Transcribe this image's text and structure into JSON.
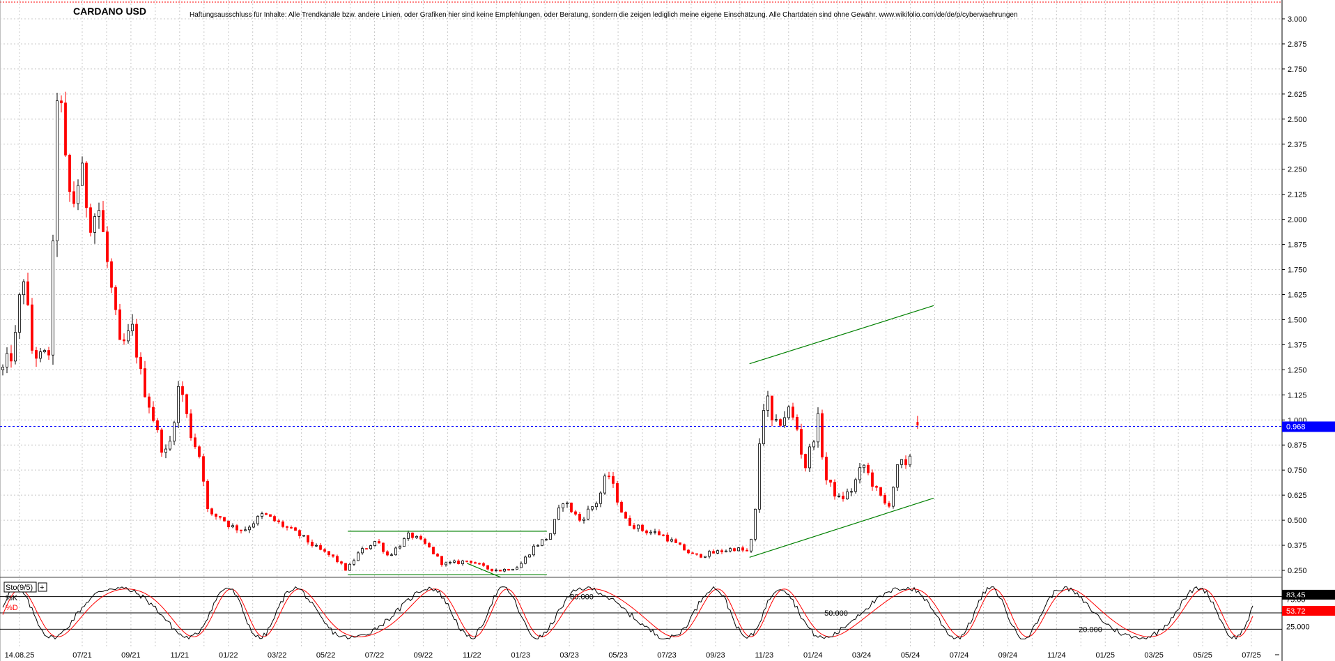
{
  "chart_data": {
    "type": "candlestick",
    "title": "CARDANO USD",
    "disclaimer": "Haftungsausschluss für Inhalte: Alle Trendkanäle bzw. andere Linien, oder Grafiken hier sind keine Empfehlungen, oder Beratung, sondern die zeigen lediglich meine eigene Einschätzung. Alle Chartdaten sind ohne Gewähr.  www.wikifolio.com/de/de/p/cyberwaehrungen",
    "x_tick_labels": [
      "14.08.25",
      "07/21",
      "09/21",
      "11/21",
      "01/22",
      "03/22",
      "05/22",
      "07/22",
      "09/22",
      "11/22",
      "01/23",
      "03/23",
      "05/23",
      "07/23",
      "09/23",
      "11/23",
      "01/24",
      "03/24",
      "05/24",
      "07/24",
      "09/24",
      "11/24",
      "01/25",
      "03/25",
      "05/25",
      "07/25"
    ],
    "y_ticks": [
      "0.250",
      "0.375",
      "0.500",
      "0.625",
      "0.750",
      "0.875",
      "1.000",
      "1.125",
      "1.250",
      "1.375",
      "1.500",
      "1.625",
      "1.750",
      "1.875",
      "2.000",
      "2.125",
      "2.250",
      "2.375",
      "2.500",
      "2.625",
      "2.750",
      "2.875",
      "3.000"
    ],
    "ylim": [
      0.2,
      3.04
    ],
    "last_price": "0.968",
    "last_price_value": 0.968,
    "price_path": [
      {
        "date": "2021-06-01",
        "close": 1.25
      },
      {
        "date": "2021-06-20",
        "close": 1.35
      },
      {
        "date": "2021-07-05",
        "close": 1.75
      },
      {
        "date": "2021-07-20",
        "close": 1.35
      },
      {
        "date": "2021-08-05",
        "close": 1.3
      },
      {
        "date": "2021-08-20",
        "close": 1.35
      },
      {
        "date": "2021-09-02",
        "close": 2.85
      },
      {
        "date": "2021-09-10",
        "close": 2.35
      },
      {
        "date": "2021-09-25",
        "close": 2.05
      },
      {
        "date": "2021-10-10",
        "close": 2.25
      },
      {
        "date": "2021-10-25",
        "close": 2.0
      },
      {
        "date": "2021-11-10",
        "close": 2.05
      },
      {
        "date": "2021-11-25",
        "close": 1.75
      },
      {
        "date": "2021-12-15",
        "close": 1.35
      },
      {
        "date": "2022-01-05",
        "close": 1.45
      },
      {
        "date": "2022-01-20",
        "close": 1.2
      },
      {
        "date": "2022-02-05",
        "close": 1.05
      },
      {
        "date": "2022-02-20",
        "close": 0.88
      },
      {
        "date": "2022-03-05",
        "close": 0.82
      },
      {
        "date": "2022-03-25",
        "close": 1.2
      },
      {
        "date": "2022-04-10",
        "close": 0.95
      },
      {
        "date": "2022-04-30",
        "close": 0.8
      },
      {
        "date": "2022-05-12",
        "close": 0.52
      },
      {
        "date": "2022-06-01",
        "close": 0.52
      },
      {
        "date": "2022-06-18",
        "close": 0.47
      },
      {
        "date": "2022-07-10",
        "close": 0.45
      },
      {
        "date": "2022-08-12",
        "close": 0.53
      },
      {
        "date": "2022-09-10",
        "close": 0.48
      },
      {
        "date": "2022-10-15",
        "close": 0.42
      },
      {
        "date": "2022-11-10",
        "close": 0.36
      },
      {
        "date": "2022-12-10",
        "close": 0.31
      },
      {
        "date": "2022-12-30",
        "close": 0.25
      },
      {
        "date": "2023-01-20",
        "close": 0.34
      },
      {
        "date": "2023-02-18",
        "close": 0.4
      },
      {
        "date": "2023-03-10",
        "close": 0.32
      },
      {
        "date": "2023-04-15",
        "close": 0.43
      },
      {
        "date": "2023-05-15",
        "close": 0.37
      },
      {
        "date": "2023-06-10",
        "close": 0.28
      },
      {
        "date": "2023-07-05",
        "close": 0.29
      },
      {
        "date": "2023-07-25",
        "close": 0.3
      },
      {
        "date": "2023-08-20",
        "close": 0.26
      },
      {
        "date": "2023-09-15",
        "close": 0.25
      },
      {
        "date": "2023-10-15",
        "close": 0.27
      },
      {
        "date": "2023-11-10",
        "close": 0.37
      },
      {
        "date": "2023-12-05",
        "close": 0.42
      },
      {
        "date": "2023-12-28",
        "close": 0.6
      },
      {
        "date": "2024-01-25",
        "close": 0.5
      },
      {
        "date": "2024-02-25",
        "close": 0.6
      },
      {
        "date": "2024-03-12",
        "close": 0.74
      },
      {
        "date": "2024-04-10",
        "close": 0.5
      },
      {
        "date": "2024-05-10",
        "close": 0.45
      },
      {
        "date": "2024-06-10",
        "close": 0.43
      },
      {
        "date": "2024-07-05",
        "close": 0.38
      },
      {
        "date": "2024-08-05",
        "close": 0.32
      },
      {
        "date": "2024-09-10",
        "close": 0.34
      },
      {
        "date": "2024-10-10",
        "close": 0.36
      },
      {
        "date": "2024-11-05",
        "close": 0.34
      },
      {
        "date": "2024-11-15",
        "close": 0.55
      },
      {
        "date": "2024-11-25",
        "close": 1.05
      },
      {
        "date": "2024-12-05",
        "close": 1.1
      },
      {
        "date": "2024-12-15",
        "close": 0.95
      },
      {
        "date": "2025-01-10",
        "close": 1.05
      },
      {
        "date": "2025-01-25",
        "close": 0.95
      },
      {
        "date": "2025-02-05",
        "close": 0.75
      },
      {
        "date": "2025-03-02",
        "close": 1.02
      },
      {
        "date": "2025-03-10",
        "close": 0.72
      },
      {
        "date": "2025-04-05",
        "close": 0.6
      },
      {
        "date": "2025-04-25",
        "close": 0.65
      },
      {
        "date": "2025-05-15",
        "close": 0.78
      },
      {
        "date": "2025-06-05",
        "close": 0.65
      },
      {
        "date": "2025-06-25",
        "close": 0.56
      },
      {
        "date": "2025-07-15",
        "close": 0.8
      },
      {
        "date": "2025-07-25",
        "close": 0.75
      },
      {
        "date": "2025-08-14",
        "close": 0.97
      }
    ],
    "trendlines": [
      {
        "start": {
          "date": "2023-01-01",
          "value": 0.445
        },
        "end": {
          "date": "2023-12-01",
          "value": 0.445
        },
        "color": "#008000"
      },
      {
        "start": {
          "date": "2023-01-01",
          "value": 0.228
        },
        "end": {
          "date": "2023-12-01",
          "value": 0.228
        },
        "color": "#008000"
      },
      {
        "start": {
          "date": "2023-07-20",
          "value": 0.285
        },
        "end": {
          "date": "2023-09-15",
          "value": 0.215
        },
        "color": "#008000"
      },
      {
        "start": {
          "date": "2024-11-05",
          "value": 1.28
        },
        "end": {
          "date": "2025-09-10",
          "value": 1.57
        },
        "color": "#008000"
      },
      {
        "start": {
          "date": "2024-11-05",
          "value": 0.315
        },
        "end": {
          "date": "2025-09-10",
          "value": 0.61
        },
        "color": "#008000"
      }
    ],
    "indicator": {
      "name": "Sto(9/5)",
      "k_label": "%K",
      "d_label": "%D",
      "k_value": "83.45",
      "d_value": "53.72",
      "k_value_num": 83.45,
      "d_value_num": 53.72,
      "levels": [
        {
          "value": 80,
          "label": "80.000"
        },
        {
          "value": 50,
          "label": "50.000"
        },
        {
          "value": 20,
          "label": "20.000"
        }
      ],
      "axis_labels": [
        "75.00",
        "25.000"
      ]
    },
    "colors": {
      "up": "#000000",
      "down": "#ff0000",
      "trend": "#008000",
      "last_price_badge": "#0000ff",
      "k_badge": "#000000",
      "d_badge": "#ff0000",
      "indicator_k": "#000000",
      "indicator_d": "#ff0000"
    }
  }
}
